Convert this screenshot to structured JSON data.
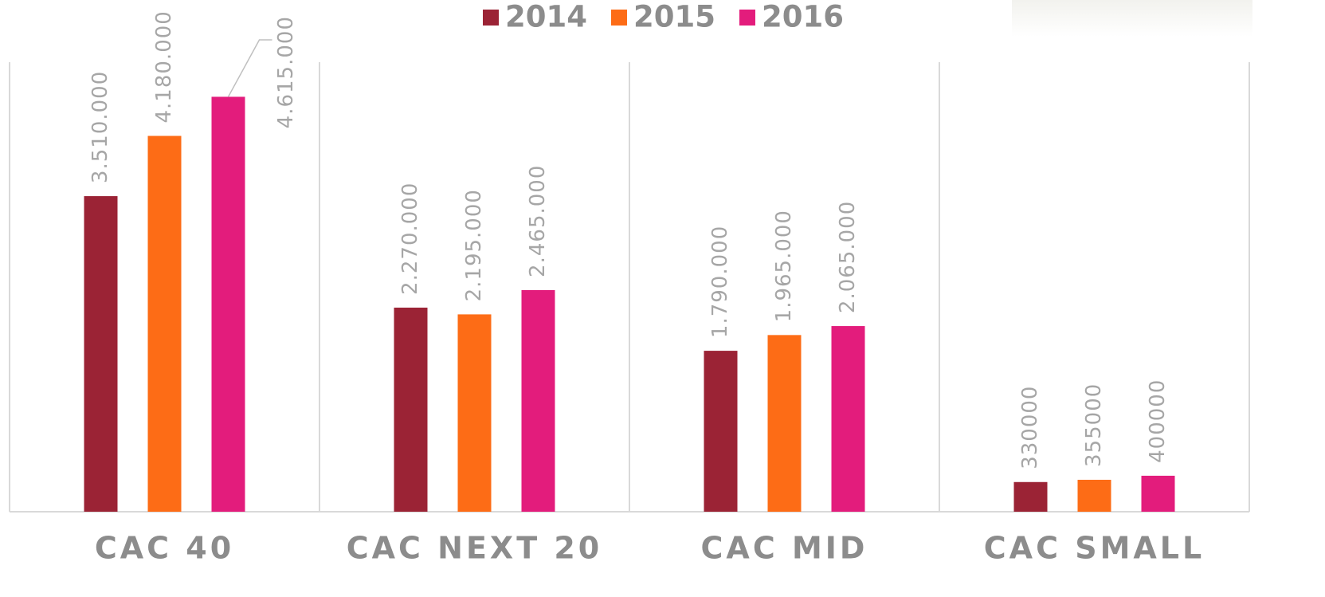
{
  "chart_data": {
    "type": "bar",
    "categories": [
      "CAC 40",
      "CAC NEXT 20",
      "CAC MID",
      "CAC SMALL"
    ],
    "series": [
      {
        "name": "2014",
        "color": "#9b2335",
        "values": [
          3510000,
          2270000,
          1790000,
          330000
        ],
        "value_labels": [
          "3.510.000",
          "2.270.000",
          "1.790.000",
          "330000"
        ]
      },
      {
        "name": "2015",
        "color": "#fd6c16",
        "values": [
          4180000,
          2195000,
          1965000,
          355000
        ],
        "value_labels": [
          "4.180.000",
          "2.195.000",
          "1.965.000",
          "355000"
        ]
      },
      {
        "name": "2016",
        "color": "#e31c7c",
        "values": [
          4615000,
          2465000,
          2065000,
          400000
        ],
        "value_labels": [
          "4.615.000",
          "2.465.000",
          "2.065.000",
          "400000"
        ]
      }
    ],
    "ylim": [
      0,
      5000000
    ]
  }
}
